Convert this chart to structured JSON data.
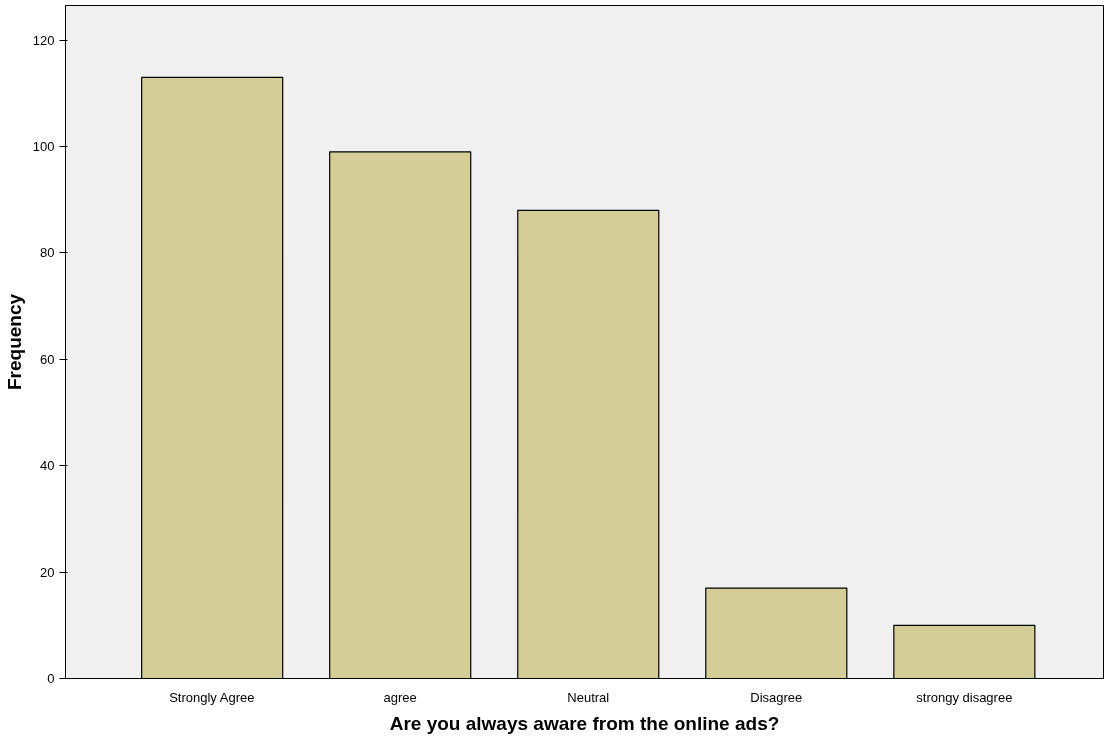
{
  "chart_data": {
    "type": "bar",
    "xlabel": "Are you always aware from the online ads?",
    "ylabel": "Frequency",
    "categories": [
      "Strongly Agree",
      "agree",
      "Neutral",
      "Disagree",
      "strongy disagree"
    ],
    "values": [
      113,
      99,
      88,
      17,
      10
    ],
    "color": "#d3ce97",
    "ylim": [
      0,
      126.5
    ],
    "yticks": [
      0,
      20,
      40,
      60,
      80,
      100,
      120
    ],
    "grid": false
  }
}
